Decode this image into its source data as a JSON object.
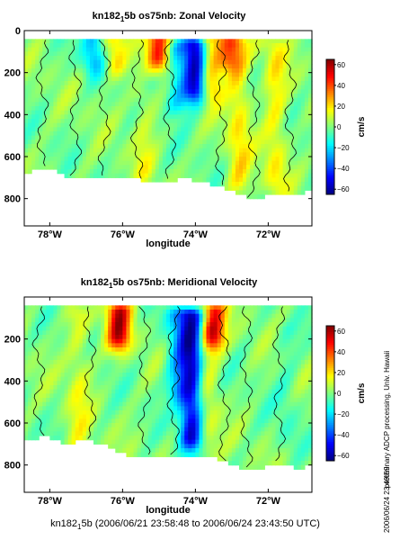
{
  "chart_data": [
    {
      "type": "heatmap",
      "title": "kn182_1_5b os75nb: Zonal Velocity",
      "title_parts": {
        "pre": "kn182",
        "sub": "1",
        "post": "5b os75nb: Zonal Velocity"
      },
      "xlabel": "longitude",
      "ylabel": "",
      "xlim": [
        -78.7,
        -70.8
      ],
      "ylim": [
        930,
        0
      ],
      "xticks": [
        -78,
        -76,
        -74,
        -72
      ],
      "xtick_labels": [
        "78°W",
        "76°W",
        "74°W",
        "72°W"
      ],
      "yticks": [
        0,
        200,
        400,
        600,
        800
      ],
      "ytick_labels": [
        "0",
        "200",
        "400",
        "600",
        "800"
      ],
      "colorbar": {
        "label": "cm/s",
        "range": [
          -65,
          65
        ],
        "ticks": [
          60,
          40,
          20,
          0,
          -20,
          -40,
          -60
        ],
        "tick_labels": [
          "60",
          "40",
          "20",
          "0",
          "−20",
          "−40",
          "−60"
        ]
      },
      "features": [
        {
          "lon": -74.0,
          "depth_from": 60,
          "depth_to": 260,
          "value": -60
        },
        {
          "lon": -75.0,
          "depth_from": 40,
          "depth_to": 110,
          "value": 45
        },
        {
          "lon": -73.6,
          "depth_from": 40,
          "depth_to": 260,
          "value": 30
        },
        {
          "lon": -73.1,
          "depth_from": 40,
          "depth_to": 120,
          "value": 32
        },
        {
          "lon": -76.2,
          "depth_from": 40,
          "depth_to": 140,
          "value": 22
        },
        {
          "lon": -76.8,
          "depth_from": 40,
          "depth_to": 130,
          "value": -24
        },
        {
          "lon": -74.5,
          "depth_from": 80,
          "depth_to": 320,
          "value": -22
        },
        {
          "lon": -72.8,
          "depth_from": 60,
          "depth_to": 700,
          "value": 18
        },
        {
          "lon": -71.8,
          "depth_from": 60,
          "depth_to": 700,
          "value": 16
        },
        {
          "lon": -75.4,
          "depth_from": 300,
          "depth_to": 650,
          "value": 10
        }
      ],
      "bottom_depth": [
        [
          -78.7,
          680
        ],
        [
          -78.1,
          650
        ],
        [
          -77.6,
          690
        ],
        [
          -77.0,
          700
        ],
        [
          -76.4,
          690
        ],
        [
          -75.8,
          700
        ],
        [
          -75.0,
          730
        ],
        [
          -74.3,
          700
        ],
        [
          -73.6,
          730
        ],
        [
          -73.0,
          760
        ],
        [
          -72.6,
          790
        ],
        [
          -72.3,
          800
        ],
        [
          -71.6,
          770
        ],
        [
          -71.1,
          780
        ],
        [
          -70.8,
          750
        ]
      ]
    },
    {
      "type": "heatmap",
      "title": "kn182_1_5b os75nb: Meridional Velocity",
      "title_parts": {
        "pre": "kn182",
        "sub": "1",
        "post": "5b os75nb: Meridional Velocity"
      },
      "xlabel": "longitude",
      "ylabel": "",
      "xlim": [
        -78.7,
        -70.8
      ],
      "ylim": [
        930,
        0
      ],
      "xticks": [
        -78,
        -76,
        -74,
        -72
      ],
      "xtick_labels": [
        "78°W",
        "76°W",
        "74°W",
        "72°W"
      ],
      "yticks": [
        200,
        400,
        600,
        800
      ],
      "ytick_labels": [
        "200",
        "400",
        "600",
        "800"
      ],
      "colorbar": {
        "label": "cm/s",
        "range": [
          -65,
          65
        ],
        "ticks": [
          60,
          40,
          20,
          0,
          -20,
          -40,
          -60
        ],
        "tick_labels": [
          "60",
          "40",
          "20",
          "0",
          "−20",
          "−40",
          "−60"
        ]
      },
      "features": [
        {
          "lon": -76.1,
          "depth_from": 60,
          "depth_to": 170,
          "value": 55
        },
        {
          "lon": -73.5,
          "depth_from": 60,
          "depth_to": 170,
          "value": 48
        },
        {
          "lon": -74.1,
          "depth_from": 80,
          "depth_to": 650,
          "value": -55
        },
        {
          "lon": -74.5,
          "depth_from": 80,
          "depth_to": 420,
          "value": -22
        },
        {
          "lon": -73.7,
          "depth_from": 150,
          "depth_to": 700,
          "value": 14
        },
        {
          "lon": -77.2,
          "depth_from": 80,
          "depth_to": 700,
          "value": 12
        },
        {
          "lon": -71.5,
          "depth_from": 150,
          "depth_to": 650,
          "value": -6
        }
      ],
      "bottom_depth": [
        [
          -78.7,
          690
        ],
        [
          -78.1,
          660
        ],
        [
          -77.6,
          700
        ],
        [
          -77.0,
          680
        ],
        [
          -76.4,
          710
        ],
        [
          -75.8,
          760
        ],
        [
          -75.0,
          760
        ],
        [
          -74.3,
          750
        ],
        [
          -73.6,
          760
        ],
        [
          -73.0,
          800
        ],
        [
          -72.6,
          820
        ],
        [
          -72.3,
          820
        ],
        [
          -71.6,
          790
        ],
        [
          -71.1,
          820
        ],
        [
          -70.8,
          790
        ]
      ]
    }
  ],
  "side_text": {
    "processing": "preliminary ADCP processing,  Univ. Hawaii",
    "stamp": "2006/06/24 23:49:59"
  },
  "footer": {
    "pre": "kn182",
    "sub": "1",
    "post": "5b (2006/06/21 23:58:48 to 2006/06/24 23:43:50 UTC)"
  },
  "colors": {
    "nan": "#ffffff",
    "axis": "#000000",
    "contour": "#000000"
  }
}
